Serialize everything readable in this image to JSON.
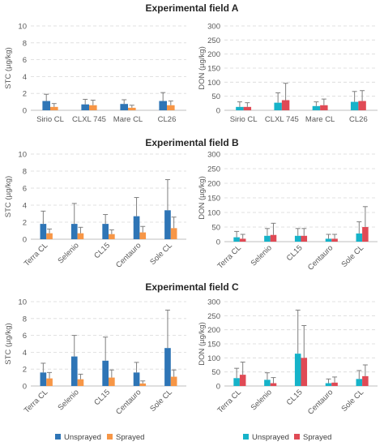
{
  "panel_titles": [
    "Experimental field A",
    "Experimental field B",
    "Experimental field C"
  ],
  "legends": {
    "stc": {
      "unsprayed": "Unsprayed",
      "sprayed": "Sprayed"
    },
    "don": {
      "unsprayed": "Unsprayed",
      "sprayed": "Sprayed"
    }
  },
  "colors": {
    "stc_unsprayed": "#2e75b6",
    "stc_sprayed": "#f79646",
    "don_unsprayed": "#16b3c9",
    "don_sprayed": "#e04a55"
  },
  "chart_data": [
    {
      "id": "A-STC",
      "type": "bar",
      "field": "A",
      "ylabel": "STC (µg/kg)",
      "ylim": [
        0,
        10
      ],
      "yticks": [
        0,
        2,
        4,
        6,
        8,
        10
      ],
      "grid": true,
      "rotated_labels": false,
      "categories": [
        "Sirio CL",
        "CLXL 745",
        "Mare CL",
        "CL26"
      ],
      "series": [
        {
          "name": "Unsprayed",
          "color_key": "stc_unsprayed",
          "values": [
            1.1,
            0.7,
            0.75,
            1.1
          ],
          "errors": [
            0.8,
            0.6,
            0.5,
            1.0
          ]
        },
        {
          "name": "Sprayed",
          "color_key": "stc_sprayed",
          "values": [
            0.4,
            0.6,
            0.3,
            0.6
          ],
          "errors": [
            0.4,
            0.6,
            0.3,
            0.5
          ]
        }
      ]
    },
    {
      "id": "A-DON",
      "type": "bar",
      "field": "A",
      "ylabel": "DON (µg/kg)",
      "ylim": [
        0,
        300
      ],
      "yticks": [
        0,
        50,
        100,
        150,
        200,
        250,
        300
      ],
      "grid": true,
      "rotated_labels": false,
      "categories": [
        "Sirio CL",
        "CLXL 745",
        "Mare CL",
        "CL26"
      ],
      "series": [
        {
          "name": "Unsprayed",
          "color_key": "don_unsprayed",
          "values": [
            12,
            27,
            15,
            30
          ],
          "errors": [
            18,
            35,
            15,
            37
          ]
        },
        {
          "name": "Sprayed",
          "color_key": "don_sprayed",
          "values": [
            12,
            36,
            18,
            33
          ],
          "errors": [
            15,
            60,
            22,
            37
          ]
        }
      ]
    },
    {
      "id": "B-STC",
      "type": "bar",
      "field": "B",
      "ylabel": "STC (µg/kg)",
      "ylim": [
        0,
        10
      ],
      "yticks": [
        0,
        2,
        4,
        6,
        8,
        10
      ],
      "grid": true,
      "rotated_labels": true,
      "categories": [
        "Terra CL",
        "Selenio",
        "CL15",
        "Centauro",
        "Sole CL"
      ],
      "series": [
        {
          "name": "Unsprayed",
          "color_key": "stc_unsprayed",
          "values": [
            1.8,
            1.8,
            1.8,
            2.7,
            3.4
          ],
          "errors": [
            1.5,
            2.4,
            1.1,
            2.2,
            3.6
          ]
        },
        {
          "name": "Sprayed",
          "color_key": "stc_sprayed",
          "values": [
            0.7,
            0.7,
            0.6,
            0.8,
            1.3
          ],
          "errors": [
            0.5,
            0.7,
            0.5,
            0.7,
            1.3
          ]
        }
      ]
    },
    {
      "id": "B-DON",
      "type": "bar",
      "field": "B",
      "ylabel": "DON (µg/kg)",
      "ylim": [
        0,
        300
      ],
      "yticks": [
        0,
        50,
        100,
        150,
        200,
        250,
        300
      ],
      "grid": true,
      "rotated_labels": true,
      "categories": [
        "Terra CL",
        "Selenio",
        "CL15",
        "Centauro",
        "Sole CL"
      ],
      "series": [
        {
          "name": "Unsprayed",
          "color_key": "don_unsprayed",
          "values": [
            15,
            20,
            20,
            10,
            28
          ],
          "errors": [
            20,
            25,
            25,
            15,
            40
          ]
        },
        {
          "name": "Sprayed",
          "color_key": "don_sprayed",
          "values": [
            10,
            23,
            20,
            10,
            50
          ],
          "errors": [
            15,
            40,
            25,
            15,
            70
          ]
        }
      ]
    },
    {
      "id": "C-STC",
      "type": "bar",
      "field": "C",
      "ylabel": "STC (µg/kg)",
      "ylim": [
        0,
        10
      ],
      "yticks": [
        0,
        2,
        4,
        6,
        8,
        10
      ],
      "grid": true,
      "rotated_labels": true,
      "categories": [
        "Terra CL",
        "Selenio",
        "CL15",
        "Centauro",
        "Sole CL"
      ],
      "series": [
        {
          "name": "Unsprayed",
          "color_key": "stc_unsprayed",
          "values": [
            1.6,
            3.5,
            3.0,
            1.6,
            4.5
          ],
          "errors": [
            1.1,
            2.5,
            2.8,
            1.2,
            4.5
          ]
        },
        {
          "name": "Sprayed",
          "color_key": "stc_sprayed",
          "values": [
            0.9,
            0.8,
            1.0,
            0.3,
            1.1
          ],
          "errors": [
            0.7,
            0.6,
            0.9,
            0.3,
            0.8
          ]
        }
      ]
    },
    {
      "id": "C-DON",
      "type": "bar",
      "field": "C",
      "ylabel": "DON (µg/kg)",
      "ylim": [
        0,
        300
      ],
      "yticks": [
        0,
        50,
        100,
        150,
        200,
        250,
        300
      ],
      "grid": true,
      "rotated_labels": true,
      "categories": [
        "Terra CL",
        "Selenio",
        "CL15",
        "Centauro",
        "Sole CL"
      ],
      "series": [
        {
          "name": "Unsprayed",
          "color_key": "don_unsprayed",
          "values": [
            28,
            22,
            115,
            10,
            25
          ],
          "errors": [
            35,
            25,
            155,
            15,
            30
          ]
        },
        {
          "name": "Sprayed",
          "color_key": "don_sprayed",
          "values": [
            40,
            10,
            100,
            12,
            35
          ],
          "errors": [
            45,
            20,
            115,
            20,
            40
          ]
        }
      ]
    }
  ]
}
